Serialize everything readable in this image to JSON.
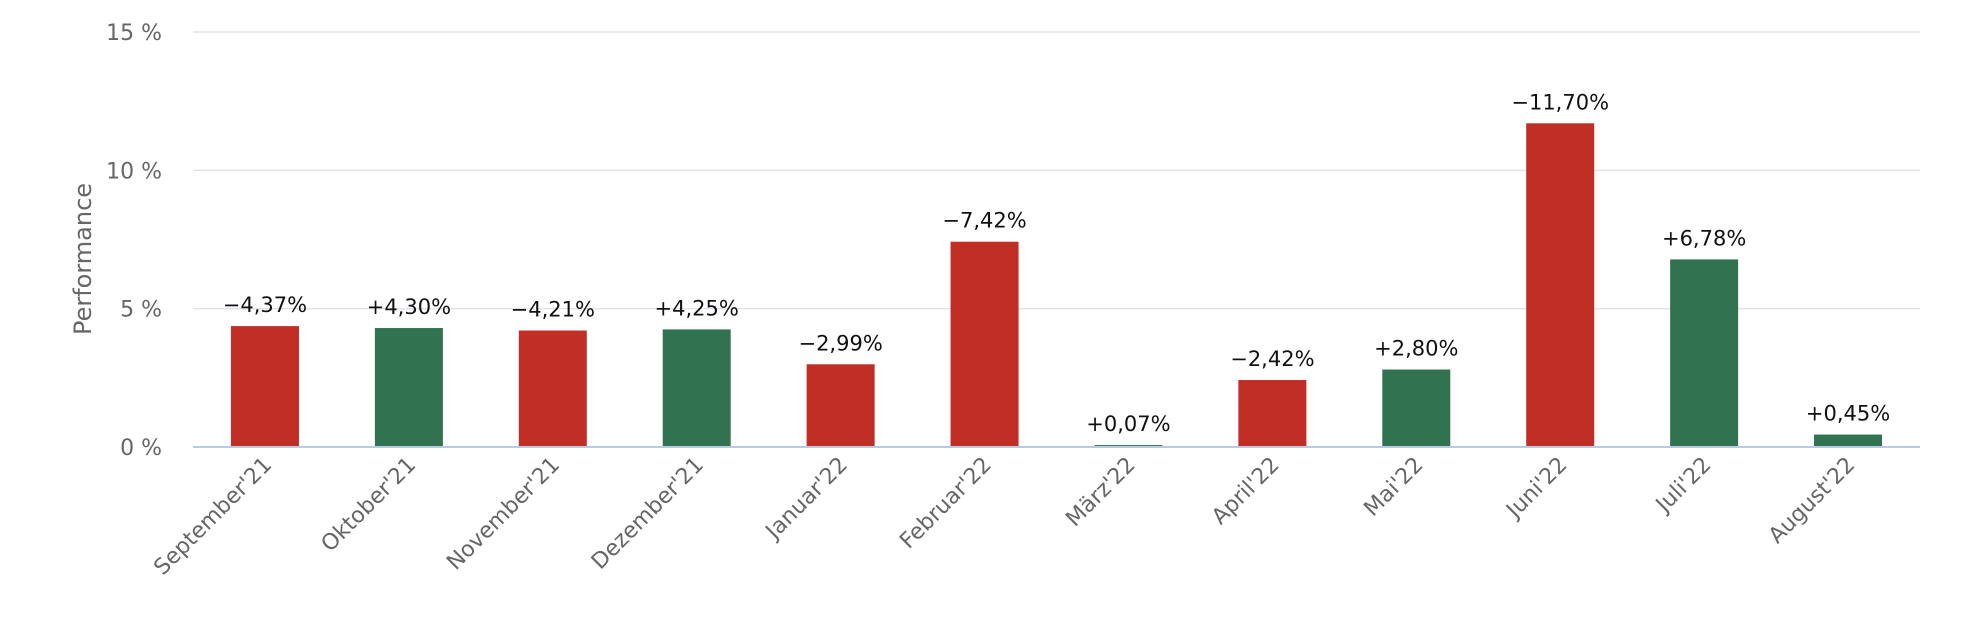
{
  "chart_data": {
    "type": "bar",
    "ylabel": "Performance",
    "ylim": [
      0,
      15
    ],
    "yticks": [
      0,
      5,
      10,
      15
    ],
    "ytick_labels": [
      "0 %",
      "5 %",
      "10 %",
      "15 %"
    ],
    "grid": true,
    "categories": [
      "September'21",
      "Oktober'21",
      "November'21",
      "Dezember'21",
      "Januar'22",
      "Februar'22",
      "März'22",
      "April'22",
      "Mai'22",
      "Juni'22",
      "Juli'22",
      "August'22"
    ],
    "values": [
      4.37,
      4.3,
      4.21,
      4.25,
      2.99,
      7.42,
      0.07,
      2.42,
      2.8,
      11.7,
      6.78,
      0.45
    ],
    "data_labels": [
      "−4,37%",
      "+4,30%",
      "−4,21%",
      "+4,25%",
      "−2,99%",
      "−7,42%",
      "+0,07%",
      "−2,42%",
      "+2,80%",
      "−11,70%",
      "+6,78%",
      "+0,45%"
    ],
    "bar_status": [
      "negative",
      "positive",
      "negative",
      "positive",
      "negative",
      "negative",
      "positive",
      "negative",
      "positive",
      "negative",
      "positive",
      "positive"
    ],
    "colors": {
      "negative": "#c02e25",
      "positive": "#317350"
    }
  }
}
